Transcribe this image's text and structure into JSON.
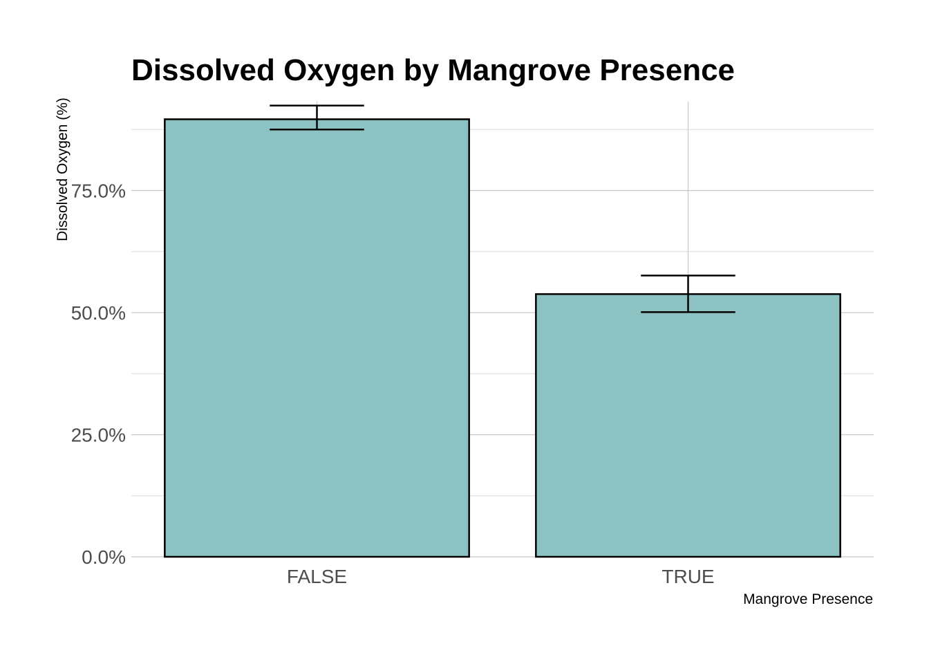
{
  "chart_data": {
    "type": "bar",
    "title": "Dissolved Oxygen by Mangrove Presence",
    "xlabel": "Mangrove Presence",
    "ylabel": "Dissolved Oxygen (%)",
    "categories": [
      "FALSE",
      "TRUE"
    ],
    "values": [
      89.6,
      53.8
    ],
    "error_low": [
      87.5,
      50.1
    ],
    "error_high": [
      92.4,
      57.6
    ],
    "ylim": [
      0,
      93
    ],
    "yticks": [
      0,
      25,
      50,
      75
    ],
    "ytick_labels": [
      "0.0%",
      "25.0%",
      "50.0%",
      "75.0%"
    ],
    "y_minor_ticks": [
      12.5,
      37.5,
      62.5,
      87.5
    ],
    "bar_color": "#8cc2c2",
    "grid": true
  }
}
